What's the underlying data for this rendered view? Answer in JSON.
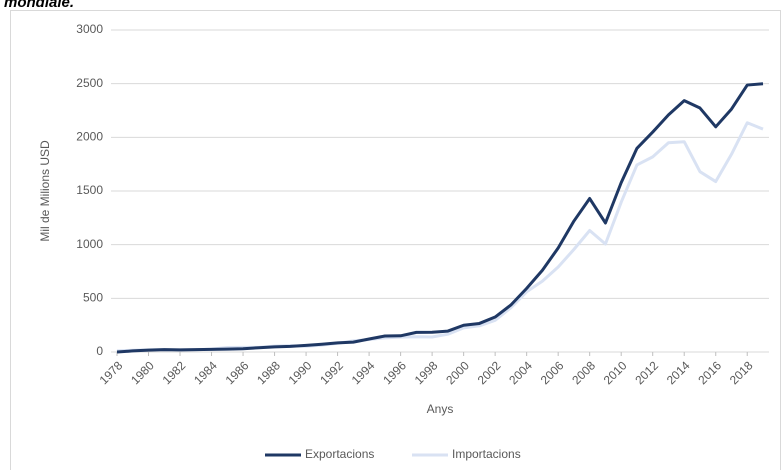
{
  "caption": "mondiale.",
  "chart_data": {
    "type": "line",
    "ylabel": "Mil de Milions USD",
    "xlabel": "Anys",
    "x": [
      1978,
      1979,
      1980,
      1981,
      1982,
      1983,
      1984,
      1985,
      1986,
      1987,
      1988,
      1989,
      1990,
      1991,
      1992,
      1993,
      1994,
      1995,
      1996,
      1997,
      1998,
      1999,
      2000,
      2001,
      2002,
      2003,
      2004,
      2005,
      2006,
      2007,
      2008,
      2009,
      2010,
      2011,
      2012,
      2013,
      2014,
      2015,
      2016,
      2017,
      2018,
      2019
    ],
    "series": [
      {
        "name": "Exportacions",
        "color": "#1f3864",
        "values": [
          0,
          10,
          18,
          22,
          20,
          22,
          25,
          27,
          30,
          40,
          48,
          52,
          62,
          72,
          85,
          92,
          121,
          149,
          151,
          183,
          184,
          195,
          249,
          266,
          326,
          438,
          593,
          762,
          969,
          1220,
          1430,
          1202,
          1578,
          1898,
          2049,
          2209,
          2342,
          2273,
          2098,
          2263,
          2487,
          2499
        ]
      },
      {
        "name": "Importacions",
        "color": "#d9e2f3",
        "values": [
          11,
          16,
          20,
          22,
          19,
          21,
          27,
          42,
          43,
          43,
          55,
          59,
          53,
          64,
          81,
          104,
          116,
          132,
          139,
          142,
          140,
          166,
          225,
          244,
          295,
          413,
          561,
          660,
          792,
          956,
          1132,
          1006,
          1396,
          1743,
          1818,
          1950,
          1959,
          1680,
          1588,
          1842,
          2136,
          2077
        ]
      }
    ],
    "xlim": [
      1978,
      2019
    ],
    "xticks": [
      1978,
      1980,
      1982,
      1984,
      1986,
      1988,
      1990,
      1992,
      1994,
      1996,
      1998,
      2000,
      2002,
      2004,
      2006,
      2008,
      2010,
      2012,
      2014,
      2016,
      2018
    ],
    "ylim": [
      0,
      3000
    ],
    "yticks": [
      0,
      500,
      1000,
      1500,
      2000,
      2500,
      3000
    ],
    "grid": true,
    "legend": "bottom"
  }
}
